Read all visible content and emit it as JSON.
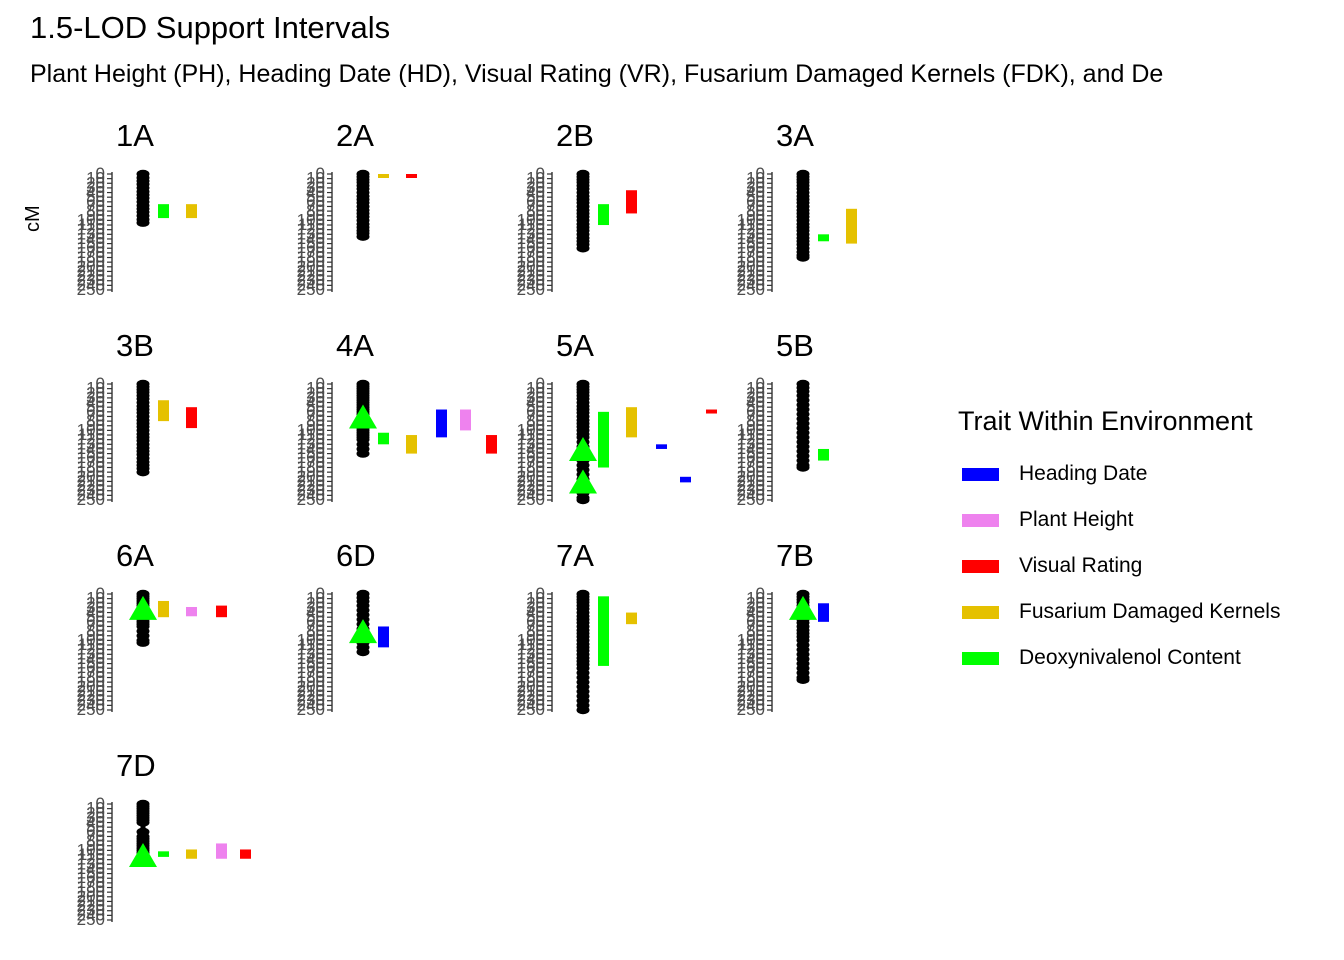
{
  "chart_data": {
    "type": "chromosome-map",
    "title": "1.5-LOD Support Intervals",
    "subtitle": "Plant Height (PH), Heading Date (HD), Visual Rating (VR), Fusarium Damaged Kernels (FDK), and De",
    "ylabel": "cM",
    "ylim": [
      0,
      250
    ],
    "y_ticks": [
      0,
      10,
      20,
      30,
      40,
      50,
      60,
      70,
      80,
      90,
      100,
      110,
      120,
      130,
      140,
      150,
      160,
      170,
      180,
      190,
      200,
      210,
      220,
      230,
      240,
      250
    ],
    "y_tick_labels": [
      "0",
      "10",
      "20",
      "30",
      "40",
      "50",
      "60",
      "70",
      "80",
      "90",
      "100",
      "110",
      "120",
      "130",
      "140",
      "150",
      "160",
      "170",
      "180",
      "190",
      "200",
      "210",
      "220",
      "230",
      "240",
      "250"
    ],
    "legend": {
      "title": "Trait Within Environment",
      "position": "right",
      "items": [
        {
          "label": "Heading Date",
          "color": "#0000ff"
        },
        {
          "label": "Plant Height",
          "color": "#ee82ee"
        },
        {
          "label": "Visual Rating",
          "color": "#ff0000"
        },
        {
          "label": "Fusarium Damaged Kernels",
          "color": "#e5c100"
        },
        {
          "label": "Deoxynivalenol Content",
          "color": "#00ff00"
        }
      ]
    },
    "qtl_marker_color": "#00ff00",
    "chromosomes": [
      {
        "name": "1A",
        "length": 105,
        "markers": [
          0,
          8,
          15,
          22,
          30,
          38,
          45,
          52,
          60,
          68,
          75,
          82,
          90,
          98,
          105
        ],
        "qtl_peaks": [],
        "intervals": [
          {
            "trait": "Deoxynivalenol Content",
            "start": 65,
            "end": 95
          },
          {
            "trait": "Fusarium Damaged Kernels",
            "start": 65,
            "end": 95
          }
        ]
      },
      {
        "name": "2A",
        "length": 135,
        "markers": [
          0,
          6,
          12,
          18,
          25,
          32,
          40,
          48,
          55,
          62,
          70,
          78,
          85,
          92,
          100,
          108,
          115,
          122,
          128,
          135
        ],
        "qtl_peaks": [],
        "intervals": [
          {
            "trait": "Fusarium Damaged Kernels",
            "start": 0,
            "end": 8
          },
          {
            "trait": "Visual Rating",
            "start": 0,
            "end": 8
          }
        ]
      },
      {
        "name": "2B",
        "length": 160,
        "markers": [
          0,
          6,
          12,
          18,
          25,
          32,
          40,
          48,
          55,
          62,
          70,
          78,
          85,
          92,
          100,
          108,
          115,
          122,
          130,
          138,
          145,
          152,
          160
        ],
        "qtl_peaks": [],
        "intervals": [
          {
            "trait": "Deoxynivalenol Content",
            "start": 65,
            "end": 110
          },
          {
            "trait": "Visual Rating",
            "start": 35,
            "end": 85
          }
        ]
      },
      {
        "name": "3A",
        "length": 180,
        "markers": [
          0,
          6,
          12,
          18,
          25,
          32,
          40,
          48,
          55,
          62,
          70,
          78,
          85,
          92,
          100,
          108,
          115,
          122,
          130,
          138,
          145,
          152,
          160,
          168,
          175,
          180
        ],
        "qtl_peaks": [],
        "intervals": [
          {
            "trait": "Deoxynivalenol Content",
            "start": 130,
            "end": 145
          },
          {
            "trait": "Fusarium Damaged Kernels",
            "start": 75,
            "end": 150
          }
        ]
      },
      {
        "name": "3B",
        "length": 190,
        "markers": [
          0,
          6,
          12,
          18,
          25,
          32,
          40,
          48,
          55,
          62,
          70,
          78,
          85,
          92,
          100,
          108,
          115,
          122,
          130,
          138,
          145,
          152,
          160,
          168,
          175,
          182,
          190
        ],
        "qtl_peaks": [],
        "intervals": [
          {
            "trait": "Fusarium Damaged Kernels",
            "start": 35,
            "end": 80
          },
          {
            "trait": "Visual Rating",
            "start": 50,
            "end": 95
          }
        ]
      },
      {
        "name": "4A",
        "length": 150,
        "markers": [
          0,
          5,
          10,
          15,
          20,
          25,
          30,
          35,
          40,
          45,
          50,
          55,
          60,
          65,
          70,
          75,
          80,
          85,
          90,
          95,
          100,
          105,
          110,
          115,
          120,
          130,
          140,
          150
        ],
        "qtl_peaks": [
          70
        ],
        "intervals": [
          {
            "trait": "Deoxynivalenol Content",
            "start": 105,
            "end": 130
          },
          {
            "trait": "Fusarium Damaged Kernels",
            "start": 110,
            "end": 150
          },
          {
            "trait": "Heading Date",
            "start": 55,
            "end": 115
          },
          {
            "trait": "Plant Height",
            "start": 55,
            "end": 100
          },
          {
            "trait": "Visual Rating",
            "start": 110,
            "end": 150
          }
        ]
      },
      {
        "name": "5A",
        "length": 250,
        "markers": [
          0,
          6,
          12,
          18,
          25,
          32,
          40,
          48,
          55,
          62,
          70,
          78,
          85,
          92,
          100,
          108,
          115,
          125,
          135,
          145,
          155,
          165,
          175,
          185,
          195,
          205,
          215,
          225,
          235,
          245,
          250
        ],
        "qtl_peaks": [
          140,
          210
        ],
        "intervals": [
          {
            "trait": "Deoxynivalenol Content",
            "start": 60,
            "end": 180
          },
          {
            "trait": "Fusarium Damaged Kernels",
            "start": 50,
            "end": 115
          },
          {
            "trait": "Heading Date",
            "start": 130,
            "end": 140
          },
          {
            "trait": "Heading Date",
            "start": 200,
            "end": 212
          },
          {
            "trait": "Visual Rating",
            "start": 55,
            "end": 62
          }
        ]
      },
      {
        "name": "5B",
        "length": 180,
        "markers": [
          0,
          8,
          16,
          25,
          35,
          45,
          55,
          65,
          75,
          85,
          95,
          105,
          115,
          125,
          135,
          145,
          155,
          165,
          175,
          180
        ],
        "qtl_peaks": [],
        "intervals": [
          {
            "trait": "Deoxynivalenol Content",
            "start": 140,
            "end": 165
          }
        ]
      },
      {
        "name": "6A",
        "length": 105,
        "markers": [
          0,
          5,
          10,
          15,
          20,
          25,
          30,
          35,
          40,
          45,
          50,
          55,
          60,
          65,
          70,
          80,
          90,
          100,
          105
        ],
        "qtl_peaks": [
          30
        ],
        "intervals": [
          {
            "trait": "Fusarium Damaged Kernels",
            "start": 15,
            "end": 50
          },
          {
            "trait": "Plant Height",
            "start": 28,
            "end": 48
          },
          {
            "trait": "Visual Rating",
            "start": 25,
            "end": 50
          }
        ]
      },
      {
        "name": "6D",
        "length": 125,
        "markers": [
          0,
          8,
          16,
          25,
          35,
          45,
          55,
          65,
          75,
          85,
          95,
          105,
          115,
          125
        ],
        "qtl_peaks": [
          80
        ],
        "intervals": [
          {
            "trait": "Heading Date",
            "start": 70,
            "end": 115
          }
        ]
      },
      {
        "name": "7A",
        "length": 250,
        "markers": [
          0,
          6,
          12,
          18,
          25,
          32,
          40,
          48,
          55,
          62,
          70,
          78,
          85,
          92,
          100,
          108,
          115,
          122,
          130,
          138,
          145,
          152,
          160,
          170,
          180,
          190,
          200,
          210,
          220,
          230,
          240,
          250
        ],
        "qtl_peaks": [],
        "intervals": [
          {
            "trait": "Deoxynivalenol Content",
            "start": 5,
            "end": 155
          },
          {
            "trait": "Fusarium Damaged Kernels",
            "start": 40,
            "end": 65
          }
        ]
      },
      {
        "name": "7B",
        "length": 185,
        "markers": [
          0,
          6,
          12,
          18,
          25,
          32,
          40,
          48,
          55,
          62,
          70,
          78,
          85,
          92,
          100,
          110,
          120,
          130,
          140,
          150,
          160,
          170,
          180,
          185
        ],
        "qtl_peaks": [
          30
        ],
        "intervals": [
          {
            "trait": "Heading Date",
            "start": 20,
            "end": 60
          }
        ]
      },
      {
        "name": "7D",
        "length": 125,
        "markers": [
          0,
          5,
          10,
          15,
          20,
          25,
          30,
          35,
          40,
          60,
          70,
          75,
          80,
          85,
          90,
          95,
          100,
          105,
          110,
          115,
          120,
          125
        ],
        "qtl_peaks": [
          110
        ],
        "intervals": [
          {
            "trait": "Deoxynivalenol Content",
            "start": 102,
            "end": 114
          },
          {
            "trait": "Fusarium Damaged Kernels",
            "start": 98,
            "end": 118
          },
          {
            "trait": "Plant Height",
            "start": 85,
            "end": 118
          },
          {
            "trait": "Visual Rating",
            "start": 98,
            "end": 118
          }
        ]
      }
    ]
  }
}
